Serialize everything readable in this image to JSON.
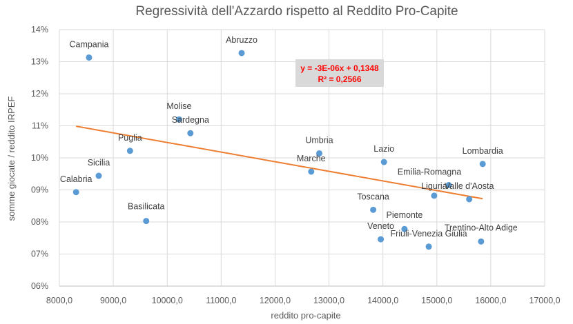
{
  "chart_data": {
    "type": "scatter",
    "title": "Regressività dell'Azzardo rispetto al Reddito Pro-Capite",
    "xlabel": "reddito pro-capite",
    "ylabel": "somme giocate / reddito IRPEF",
    "xlim": [
      8000,
      17000
    ],
    "ylim": [
      0.06,
      0.14
    ],
    "x_ticks": [
      "8000,0",
      "9000,0",
      "10000,0",
      "11000,0",
      "12000,0",
      "13000,0",
      "14000,0",
      "15000,0",
      "16000,0",
      "17000,0"
    ],
    "y_ticks": [
      "06%",
      "07%",
      "08%",
      "09%",
      "10%",
      "11%",
      "12%",
      "13%",
      "14%"
    ],
    "grid": true,
    "marker_color": "#5b9bd5",
    "trendline_color": "#ed7d31",
    "points": [
      {
        "name": "Campania",
        "x": 8550,
        "y": 0.1313
      },
      {
        "name": "Abruzzo",
        "x": 11380,
        "y": 0.1327
      },
      {
        "name": "Molise",
        "x": 10220,
        "y": 0.112
      },
      {
        "name": "Sardegna",
        "x": 10430,
        "y": 0.1077
      },
      {
        "name": "Puglia",
        "x": 9310,
        "y": 0.1022
      },
      {
        "name": "Sicilia",
        "x": 8730,
        "y": 0.0944
      },
      {
        "name": "Calabria",
        "x": 8310,
        "y": 0.0893
      },
      {
        "name": "Basilicata",
        "x": 9610,
        "y": 0.0803
      },
      {
        "name": "Umbria",
        "x": 12820,
        "y": 0.1014
      },
      {
        "name": "Marche",
        "x": 12670,
        "y": 0.0957
      },
      {
        "name": "Lazio",
        "x": 14020,
        "y": 0.0987
      },
      {
        "name": "Lombardia",
        "x": 15850,
        "y": 0.0981
      },
      {
        "name": "Emilia-Romagna",
        "x": 15220,
        "y": 0.0915
      },
      {
        "name": "Liguria",
        "x": 14950,
        "y": 0.0882
      },
      {
        "name": "Valle d'Aosta",
        "x": 15600,
        "y": 0.0871
      },
      {
        "name": "Toscana",
        "x": 13820,
        "y": 0.0838
      },
      {
        "name": "Piemonte",
        "x": 14400,
        "y": 0.0778
      },
      {
        "name": "Veneto",
        "x": 13960,
        "y": 0.0746
      },
      {
        "name": "Friuli-Venezia Giulia",
        "x": 14850,
        "y": 0.0723
      },
      {
        "name": "Trentino-Alto Adige",
        "x": 15820,
        "y": 0.0739
      }
    ],
    "trendline": {
      "slope": -3e-06,
      "intercept": 0.1348,
      "x_start": 8310,
      "x_end": 15850,
      "equation": "y = -3E-06x + 0,1348",
      "r_squared": "R² = 0,2566"
    }
  }
}
